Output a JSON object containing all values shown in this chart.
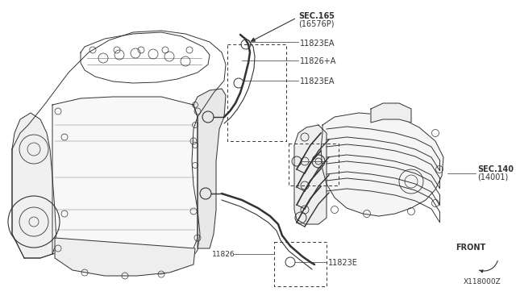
{
  "bg_color": "#ffffff",
  "lc": "#333333",
  "lc_light": "#666666",
  "fig_width": 6.4,
  "fig_height": 3.72,
  "dpi": 100,
  "texts": {
    "sec165_line1": "SEC.165",
    "sec165_line2": "(16576P)",
    "label_11823ea_1": "11823EA",
    "label_11826a": "11826+A",
    "label_11823ea_2": "11823EA",
    "label_11823e_1": "11823E",
    "label_11826": "11826",
    "label_11823e_2": "11823E",
    "sec140_line1": "SEC.140",
    "sec140_line2": "(14001)",
    "front": "FRONT",
    "code": "X118000Z"
  }
}
